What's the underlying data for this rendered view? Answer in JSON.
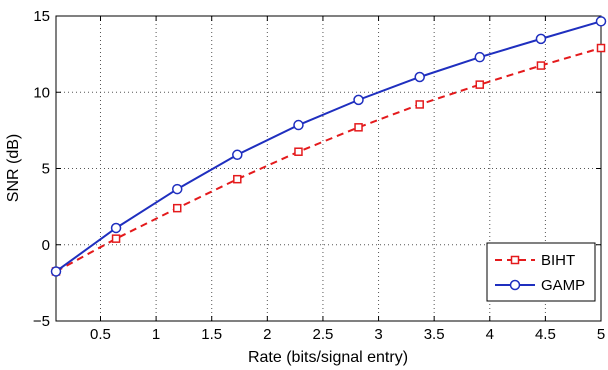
{
  "chart_data": {
    "type": "line",
    "title": "",
    "xlabel": "Rate (bits/signal entry)",
    "ylabel": "SNR (dB)",
    "xlim": [
      0.1,
      5
    ],
    "ylim": [
      -5,
      15
    ],
    "x_ticks": [
      "0.5",
      "1",
      "1.5",
      "2",
      "2.5",
      "3",
      "3.5",
      "4",
      "4.5",
      "5"
    ],
    "x_tick_values": [
      0.5,
      1,
      1.5,
      2,
      2.5,
      3,
      3.5,
      4,
      4.5,
      5
    ],
    "y_ticks": [
      "−5",
      "0",
      "5",
      "10",
      "15"
    ],
    "y_tick_values": [
      -5,
      0,
      5,
      10,
      15
    ],
    "grid": true,
    "legend_position": "bottom-right",
    "series": [
      {
        "name": "BIHT",
        "color": "#e41a1c",
        "line_style": "dashed",
        "marker": "square",
        "x": [
          0.1,
          0.64,
          1.19,
          1.73,
          2.28,
          2.82,
          3.37,
          3.91,
          4.46,
          5.0
        ],
        "y": [
          -1.75,
          0.4,
          2.4,
          4.3,
          6.1,
          7.7,
          9.2,
          10.5,
          11.75,
          12.9
        ]
      },
      {
        "name": "GAMP",
        "color": "#1f2fbf",
        "line_style": "solid",
        "marker": "circle",
        "x": [
          0.1,
          0.64,
          1.19,
          1.73,
          2.28,
          2.82,
          3.37,
          3.91,
          4.46,
          5.0
        ],
        "y": [
          -1.75,
          1.1,
          3.65,
          5.9,
          7.85,
          9.5,
          11.0,
          12.3,
          13.5,
          14.65
        ]
      }
    ]
  }
}
